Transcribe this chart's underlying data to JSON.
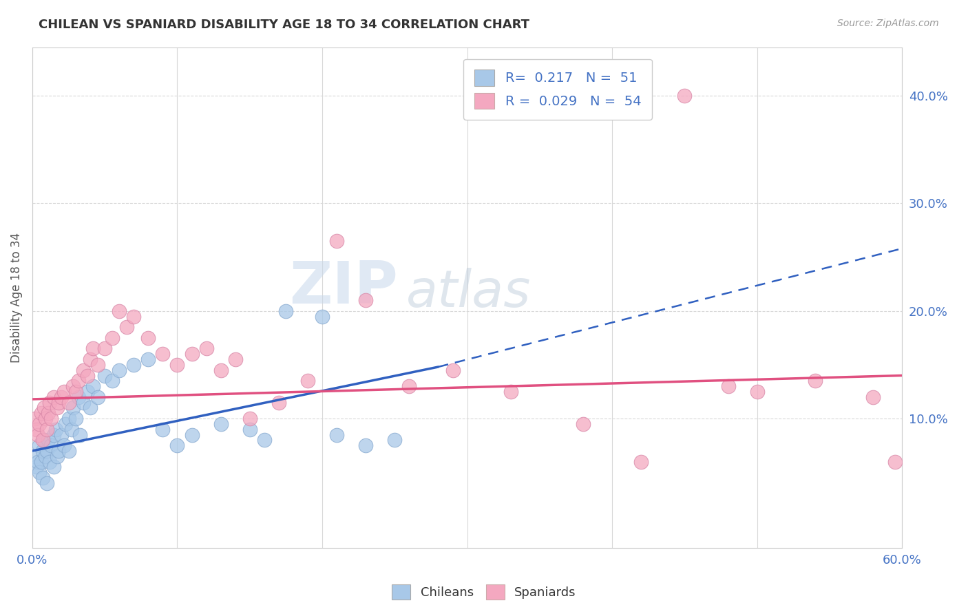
{
  "title": "CHILEAN VS SPANIARD DISABILITY AGE 18 TO 34 CORRELATION CHART",
  "source": "Source: ZipAtlas.com",
  "ylabel": "Disability Age 18 to 34",
  "xlim": [
    0.0,
    0.6
  ],
  "ylim": [
    -0.02,
    0.445
  ],
  "xticks": [
    0.0,
    0.1,
    0.2,
    0.3,
    0.4,
    0.5,
    0.6
  ],
  "xticklabels": [
    "0.0%",
    "",
    "",
    "",
    "",
    "",
    "60.0%"
  ],
  "yticks": [
    0.1,
    0.2,
    0.3,
    0.4
  ],
  "yticklabels": [
    "10.0%",
    "20.0%",
    "30.0%",
    "40.0%"
  ],
  "legend_r_chileans": "0.217",
  "legend_n_chileans": "51",
  "legend_r_spaniards": "0.029",
  "legend_n_spaniards": "54",
  "chilean_color": "#a8c8e8",
  "spaniard_color": "#f4a8c0",
  "trend_chilean_color": "#3060c0",
  "trend_spaniard_color": "#e05080",
  "background_color": "#ffffff",
  "grid_color": "#d8d8d8",
  "watermark_color": "#c8d8ec",
  "chileans_x": [
    0.002,
    0.003,
    0.004,
    0.005,
    0.005,
    0.006,
    0.007,
    0.007,
    0.008,
    0.009,
    0.01,
    0.01,
    0.011,
    0.012,
    0.013,
    0.015,
    0.015,
    0.016,
    0.017,
    0.018,
    0.02,
    0.022,
    0.023,
    0.025,
    0.025,
    0.027,
    0.028,
    0.03,
    0.032,
    0.033,
    0.035,
    0.038,
    0.04,
    0.042,
    0.045,
    0.05,
    0.055,
    0.06,
    0.07,
    0.08,
    0.09,
    0.1,
    0.11,
    0.13,
    0.15,
    0.16,
    0.175,
    0.2,
    0.21,
    0.23,
    0.25
  ],
  "chileans_y": [
    0.065,
    0.055,
    0.06,
    0.075,
    0.05,
    0.06,
    0.07,
    0.045,
    0.08,
    0.065,
    0.07,
    0.04,
    0.08,
    0.06,
    0.075,
    0.085,
    0.055,
    0.09,
    0.065,
    0.07,
    0.085,
    0.075,
    0.095,
    0.1,
    0.07,
    0.09,
    0.11,
    0.1,
    0.12,
    0.085,
    0.115,
    0.125,
    0.11,
    0.13,
    0.12,
    0.14,
    0.135,
    0.145,
    0.15,
    0.155,
    0.09,
    0.075,
    0.085,
    0.095,
    0.09,
    0.08,
    0.2,
    0.195,
    0.085,
    0.075,
    0.08
  ],
  "spaniards_x": [
    0.002,
    0.003,
    0.004,
    0.005,
    0.006,
    0.007,
    0.008,
    0.009,
    0.01,
    0.011,
    0.012,
    0.013,
    0.015,
    0.017,
    0.018,
    0.02,
    0.022,
    0.025,
    0.028,
    0.03,
    0.032,
    0.035,
    0.038,
    0.04,
    0.042,
    0.045,
    0.05,
    0.055,
    0.06,
    0.065,
    0.07,
    0.08,
    0.09,
    0.1,
    0.11,
    0.12,
    0.13,
    0.14,
    0.15,
    0.17,
    0.19,
    0.21,
    0.23,
    0.26,
    0.29,
    0.33,
    0.38,
    0.42,
    0.45,
    0.48,
    0.5,
    0.54,
    0.58,
    0.595
  ],
  "spaniards_y": [
    0.1,
    0.09,
    0.085,
    0.095,
    0.105,
    0.08,
    0.11,
    0.1,
    0.09,
    0.105,
    0.115,
    0.1,
    0.12,
    0.11,
    0.115,
    0.12,
    0.125,
    0.115,
    0.13,
    0.125,
    0.135,
    0.145,
    0.14,
    0.155,
    0.165,
    0.15,
    0.165,
    0.175,
    0.2,
    0.185,
    0.195,
    0.175,
    0.16,
    0.15,
    0.16,
    0.165,
    0.145,
    0.155,
    0.1,
    0.115,
    0.135,
    0.265,
    0.21,
    0.13,
    0.145,
    0.125,
    0.095,
    0.06,
    0.4,
    0.13,
    0.125,
    0.135,
    0.12,
    0.06
  ],
  "trend_chi_x0": 0.0,
  "trend_chi_y0": 0.07,
  "trend_chi_x1": 0.28,
  "trend_chi_y1": 0.148,
  "trend_chi_dash_x1": 0.6,
  "trend_chi_dash_y1": 0.258,
  "trend_spa_x0": 0.0,
  "trend_spa_y0": 0.118,
  "trend_spa_x1": 0.6,
  "trend_spa_y1": 0.14
}
